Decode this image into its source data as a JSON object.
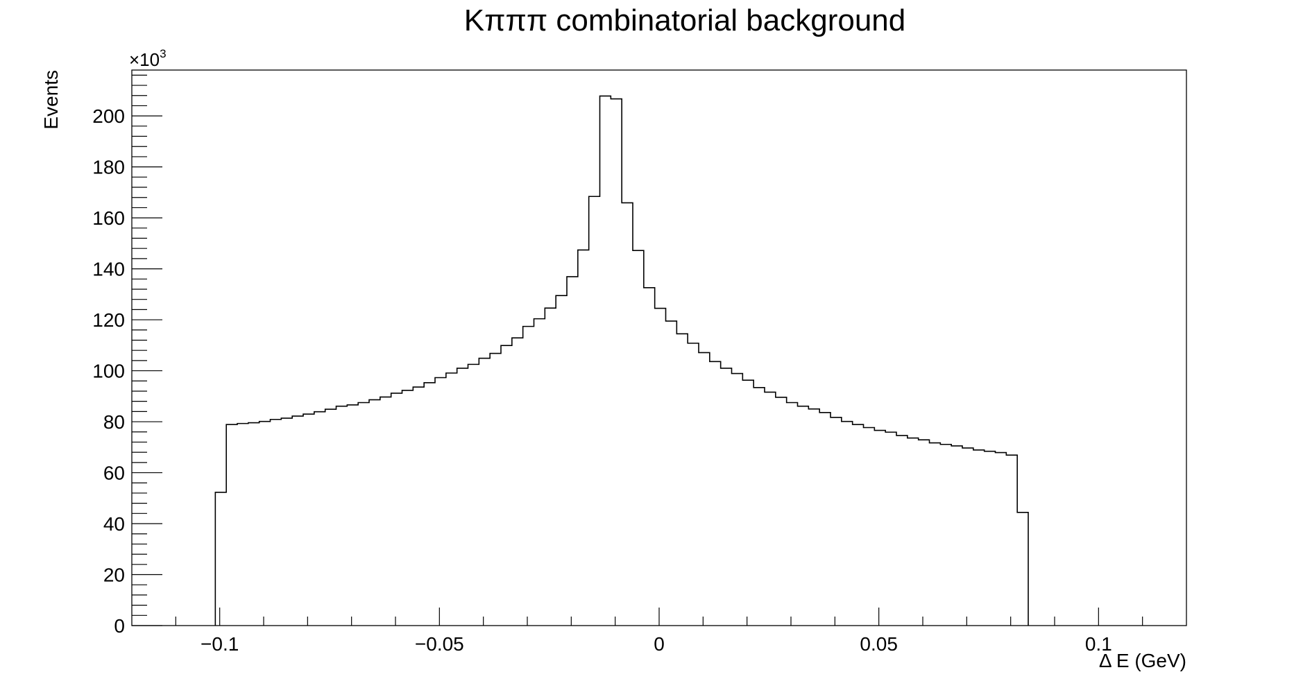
{
  "chart_data": {
    "type": "bar",
    "title": "Kπππ combinatorial background",
    "xlabel": "Δ E (GeV)",
    "ylabel": "Events",
    "y_multiplier": "×10",
    "y_multiplier_exp": "3",
    "xlim": [
      -0.12,
      0.12
    ],
    "ylim": [
      0,
      218
    ],
    "x_ticks": [
      -0.1,
      -0.05,
      0,
      0.05,
      0.1
    ],
    "x_tick_labels": [
      "−0.1",
      "−0.05",
      "0",
      "0.05",
      "0.1"
    ],
    "y_ticks": [
      0,
      20,
      40,
      60,
      80,
      100,
      120,
      140,
      160,
      180,
      200
    ],
    "y_tick_labels": [
      "0",
      "20",
      "40",
      "60",
      "80",
      "100",
      "120",
      "140",
      "160",
      "180",
      "200"
    ],
    "bin_start": -0.101,
    "bin_width": 0.0025,
    "values": [
      52.3,
      78.9,
      79.3,
      79.6,
      80.1,
      80.9,
      81.4,
      82.2,
      83.0,
      83.9,
      84.9,
      86.1,
      86.6,
      87.5,
      88.6,
      89.7,
      91.2,
      92.3,
      93.6,
      95.3,
      97.3,
      99.1,
      101.0,
      102.5,
      104.9,
      106.8,
      109.9,
      112.9,
      117.4,
      120.4,
      124.6,
      129.5,
      136.9,
      147.4,
      168.4,
      207.8,
      206.7,
      165.9,
      147.2,
      132.6,
      124.5,
      119.5,
      114.5,
      110.8,
      107.1,
      103.6,
      101.0,
      98.9,
      96.3,
      93.4,
      91.6,
      89.6,
      87.5,
      86.1,
      85.0,
      83.6,
      81.7,
      80.1,
      78.9,
      77.7,
      76.6,
      75.9,
      74.6,
      73.6,
      72.9,
      71.7,
      71.1,
      70.5,
      69.7,
      68.9,
      68.4,
      67.9,
      66.9,
      44.4
    ],
    "grid": false,
    "legend": "none",
    "line_color": "#000000"
  }
}
